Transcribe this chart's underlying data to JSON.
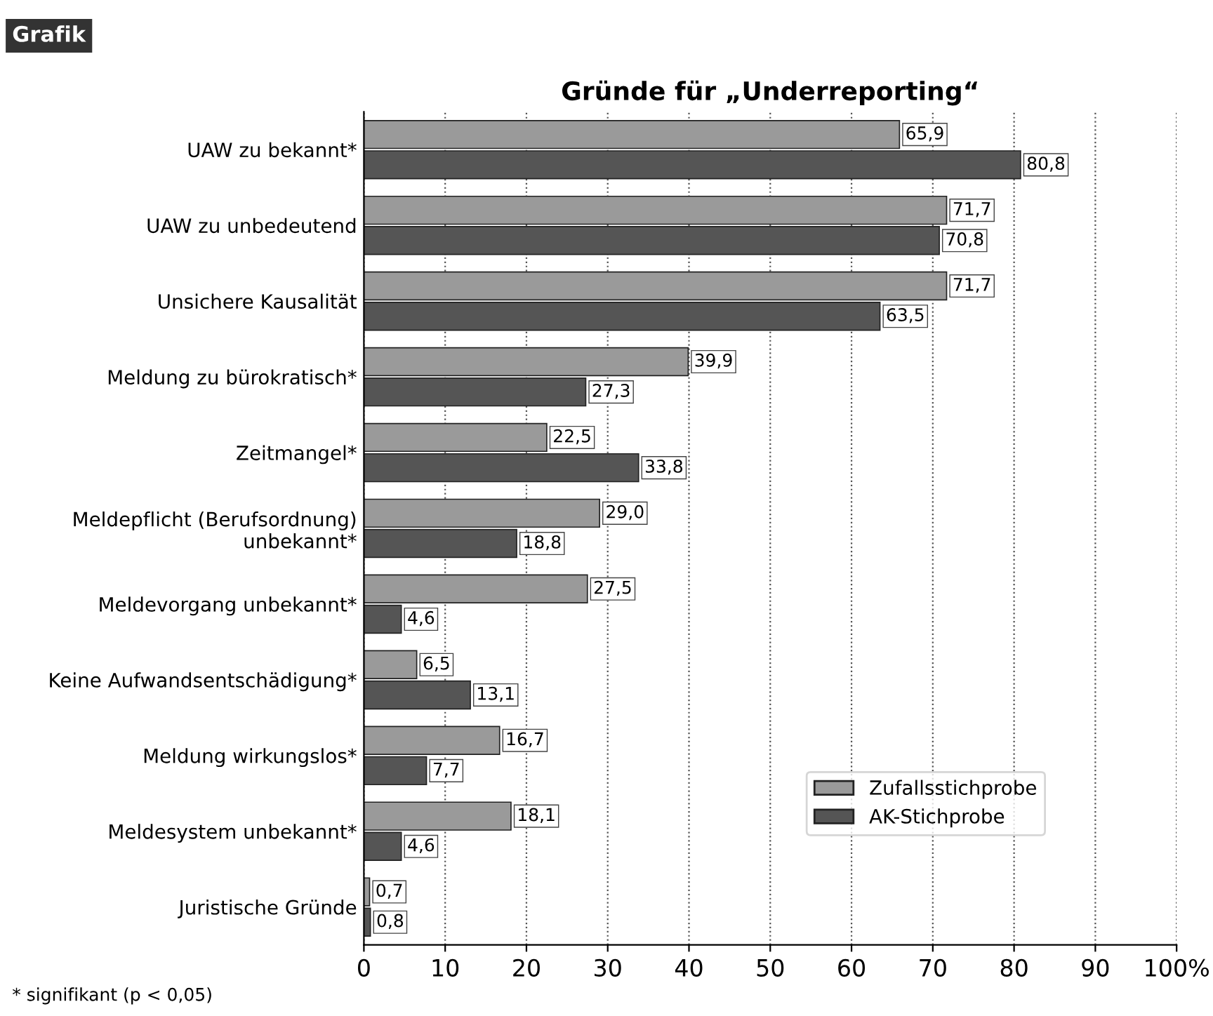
{
  "chart_data": {
    "type": "bar",
    "orientation": "horizontal",
    "title": "Gründe für „Underreporting“",
    "categories": [
      "UAW zu bekannt*",
      "UAW zu unbedeutend",
      "Unsichere Kausalität",
      "Meldung zu bürokratisch*",
      "Zeitmangel*",
      "Meldepflicht (Berufsordnung) unbekannt*",
      "Meldevorgang unbekannt*",
      "Keine Aufwandsentschädigung*",
      "Meldung wirkungslos*",
      "Meldesystem unbekannt*",
      "Juristische Gründe"
    ],
    "series": [
      {
        "name": "Zufallsstichprobe",
        "color": "#9a9a9a",
        "values": [
          65.9,
          71.7,
          71.7,
          39.9,
          22.5,
          29.0,
          27.5,
          6.5,
          16.7,
          18.1,
          0.7
        ],
        "value_labels": [
          "65,9",
          "71,7",
          "71,7",
          "39,9",
          "22,5",
          "29,0",
          "27,5",
          "6,5",
          "16,7",
          "18,1",
          "0,7"
        ]
      },
      {
        "name": "AK-Stichprobe",
        "color": "#555555",
        "values": [
          80.8,
          70.8,
          63.5,
          27.3,
          33.8,
          18.8,
          4.6,
          13.1,
          7.7,
          4.6,
          0.8
        ],
        "value_labels": [
          "80,8",
          "70,8",
          "63,5",
          "27,3",
          "33,8",
          "18,8",
          "4,6",
          "13,1",
          "7,7",
          "4,6",
          "0,8"
        ]
      }
    ],
    "xlim": [
      0,
      100
    ],
    "xticks": [
      0,
      10,
      20,
      30,
      40,
      50,
      60,
      70,
      80,
      90,
      {
        "value": 100,
        "label": "100%"
      }
    ],
    "grid": "x",
    "legend": "lower right",
    "annotations": [
      "Grafik",
      "* signifikant (p < 0,05)"
    ]
  }
}
